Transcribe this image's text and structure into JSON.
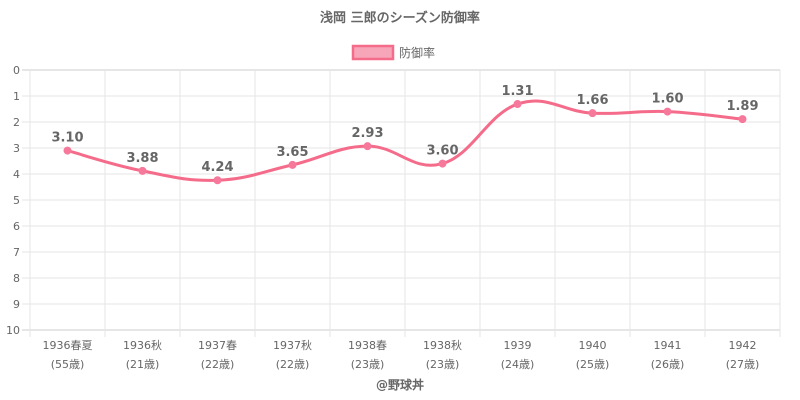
{
  "chart_data": {
    "type": "line",
    "title": "浅岡 三郎のシーズン防御率",
    "legend": {
      "label": "防御率",
      "position": "top"
    },
    "categories": [
      [
        "1936春夏",
        "(55歳)"
      ],
      [
        "1936秋",
        "(21歳)"
      ],
      [
        "1937春",
        "(22歳)"
      ],
      [
        "1937秋",
        "(22歳)"
      ],
      [
        "1938春",
        "(23歳)"
      ],
      [
        "1938秋",
        "(23歳)"
      ],
      [
        "1939",
        "(24歳)"
      ],
      [
        "1940",
        "(25歳)"
      ],
      [
        "1941",
        "(26歳)"
      ],
      [
        "1942",
        "(27歳)"
      ]
    ],
    "series": [
      {
        "name": "防御率",
        "values": [
          3.1,
          3.88,
          4.24,
          3.65,
          2.93,
          3.6,
          1.31,
          1.66,
          1.6,
          1.89
        ],
        "labels": [
          "3.10",
          "3.88",
          "4.24",
          "3.65",
          "2.93",
          "3.60",
          "1.31",
          "1.66",
          "1.60",
          "1.89"
        ]
      }
    ],
    "y_ticks": [
      "0",
      "1",
      "2",
      "3",
      "4",
      "5",
      "6",
      "7",
      "8",
      "9",
      "10"
    ],
    "ylim": [
      0,
      10
    ],
    "y_reversed": true,
    "grid": true,
    "colors": {
      "line": "#f56b8a",
      "point": "#f6789a",
      "legend_fill": "#f7a6ba"
    }
  },
  "footer": {
    "credit": "@野球丼"
  }
}
